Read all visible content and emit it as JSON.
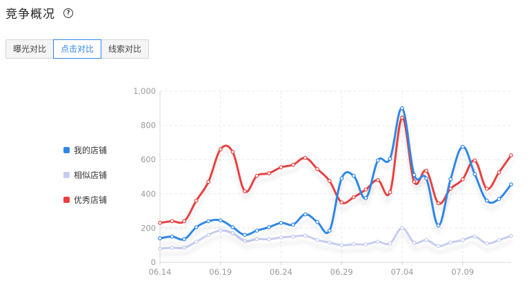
{
  "header": {
    "title": "竞争概况",
    "help_icon": "?"
  },
  "tabs": [
    {
      "label": "曝光对比",
      "active": false
    },
    {
      "label": "点击对比",
      "active": true
    },
    {
      "label": "线索对比",
      "active": false
    }
  ],
  "colors": {
    "accent": "#2f86e8",
    "my_store": "#2f86e8",
    "similar": "#c5cdf0",
    "excellent": "#e8403f"
  },
  "chart_data": {
    "type": "line",
    "x_tick_labels": [
      "06.14",
      "06.19",
      "06.24",
      "06.29",
      "07.04",
      "07.09"
    ],
    "y_tick_labels": [
      "0",
      "200",
      "400",
      "600",
      "800",
      "1,000"
    ],
    "ylim": [
      0,
      1000
    ],
    "x": [
      "06.14",
      "06.15",
      "06.16",
      "06.17",
      "06.18",
      "06.19",
      "06.20",
      "06.21",
      "06.22",
      "06.23",
      "06.24",
      "06.25",
      "06.26",
      "06.27",
      "06.28",
      "06.29",
      "06.30",
      "07.01",
      "07.02",
      "07.03",
      "07.04",
      "07.05",
      "07.06",
      "07.07",
      "07.08",
      "07.09",
      "07.10",
      "07.11",
      "07.12",
      "07.13"
    ],
    "grid": true,
    "legend_position": "left",
    "series": [
      {
        "name": "我的店铺",
        "color": "#2f86e8",
        "values": [
          140,
          150,
          135,
          205,
          240,
          245,
          205,
          160,
          185,
          205,
          230,
          220,
          280,
          235,
          185,
          490,
          505,
          375,
          595,
          605,
          900,
          510,
          490,
          215,
          485,
          675,
          515,
          360,
          370,
          455
        ]
      },
      {
        "name": "相似店铺",
        "color": "#c5cdf0",
        "values": [
          80,
          85,
          85,
          120,
          160,
          185,
          170,
          125,
          135,
          135,
          145,
          150,
          155,
          130,
          115,
          100,
          105,
          105,
          120,
          110,
          200,
          115,
          130,
          95,
          115,
          130,
          150,
          110,
          130,
          155
        ]
      },
      {
        "name": "优秀店铺",
        "color": "#e8403f",
        "values": [
          230,
          240,
          240,
          360,
          470,
          660,
          645,
          415,
          505,
          520,
          555,
          570,
          610,
          545,
          475,
          350,
          380,
          425,
          480,
          410,
          845,
          470,
          535,
          345,
          430,
          485,
          595,
          430,
          525,
          625
        ]
      }
    ]
  }
}
